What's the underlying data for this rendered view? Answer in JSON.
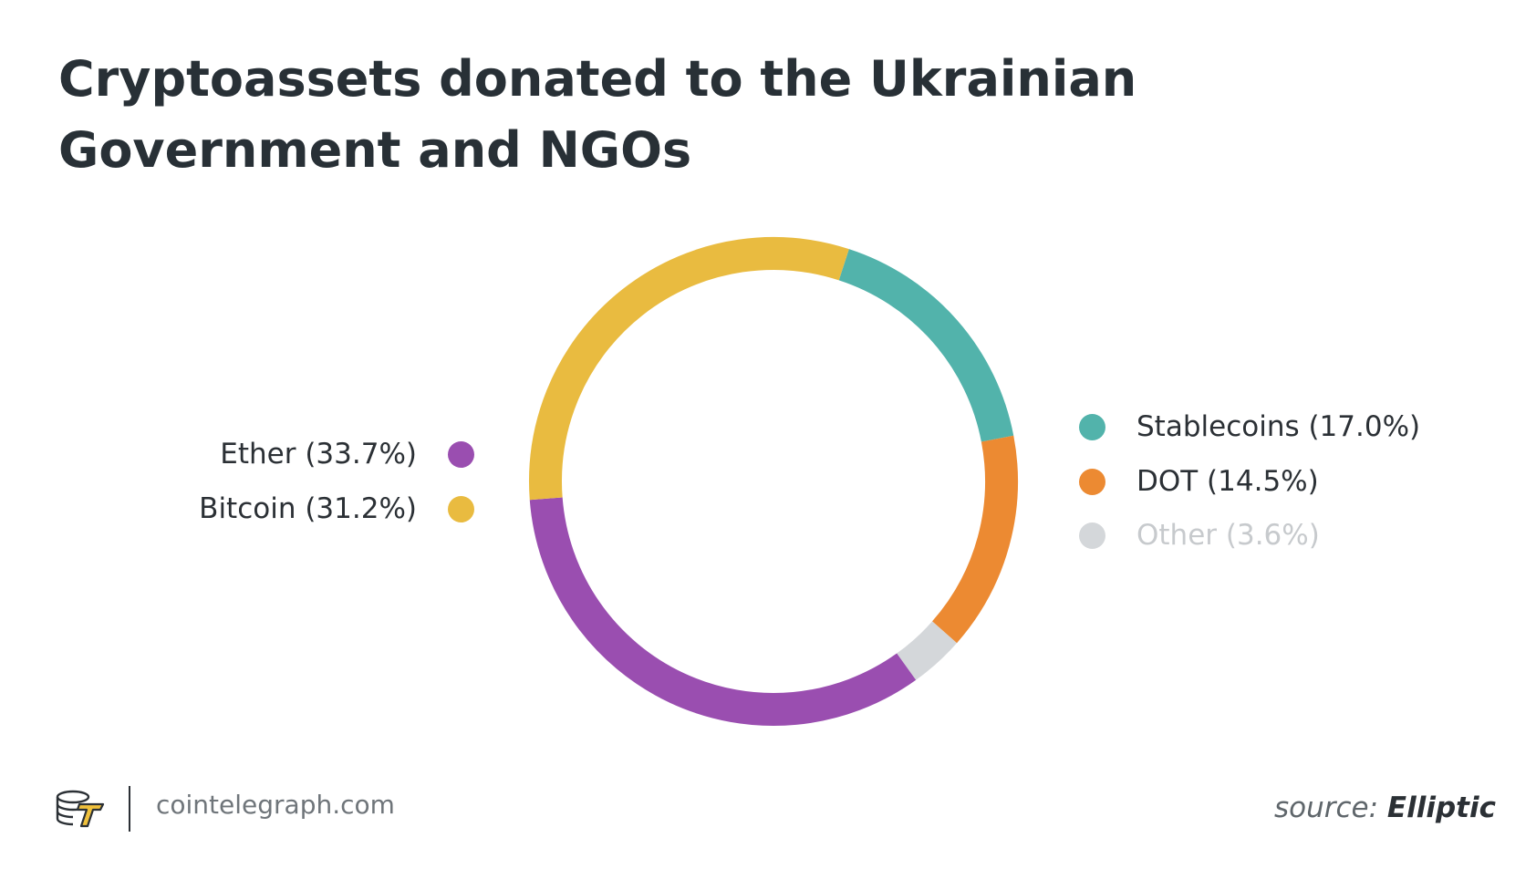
{
  "chart_data": {
    "type": "pie",
    "variant": "donut",
    "title": "Cryptoassets donated to the Ukrainian Government and NGOs",
    "slices": [
      {
        "label": "Stablecoins (17.0%)",
        "value": 17.0,
        "color": "#52b3ab"
      },
      {
        "label": "DOT (14.5%)",
        "value": 14.5,
        "color": "#ec8a32"
      },
      {
        "label": "Other (3.6%)",
        "value": 3.6,
        "color": "#d4d7da"
      },
      {
        "label": "Ether (33.7%)",
        "value": 33.7,
        "color": "#9a4eb0"
      },
      {
        "label": "Bitcoin (31.2%)",
        "value": 31.2,
        "color": "#e9bb40"
      }
    ],
    "legend": {
      "left": [
        {
          "label": "Ether (33.7%)",
          "color": "#9a4eb0"
        },
        {
          "label": "Bitcoin (31.2%)",
          "color": "#e9bb40"
        }
      ],
      "right": [
        {
          "label": "Stablecoins (17.0%)",
          "color": "#52b3ab"
        },
        {
          "label": "DOT (14.5%)",
          "color": "#ec8a32"
        },
        {
          "label": "Other (3.6%)",
          "color": "#d4d7da"
        }
      ]
    }
  },
  "footer": {
    "logo_icon": "cointelegraph-logo-icon",
    "site": "cointelegraph.com",
    "source_prefix": "source:",
    "source_name": "Elliptic"
  }
}
